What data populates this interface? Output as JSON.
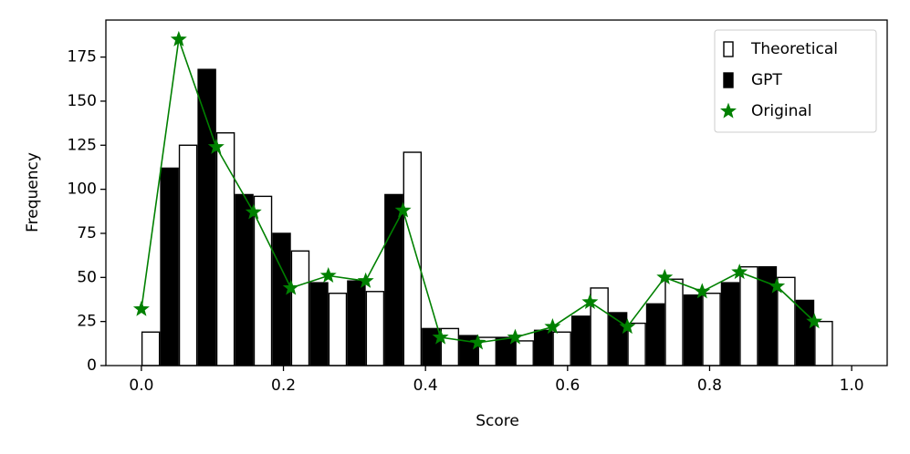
{
  "chart_data": {
    "type": "bar",
    "x_label": "Score",
    "y_label": "Frequency",
    "x": [
      0,
      0.0526,
      0.1053,
      0.1579,
      0.2105,
      0.2632,
      0.3158,
      0.3684,
      0.4211,
      0.4737,
      0.5263,
      0.5789,
      0.6316,
      0.6842,
      0.7368,
      0.7895,
      0.8421,
      0.8947,
      0.9474
    ],
    "series": [
      {
        "name": "Theoretical",
        "type": "bar",
        "color": "#ffffff",
        "edge_color": "#000000",
        "side": "right",
        "values": [
          19,
          125,
          132,
          96,
          65,
          41,
          42,
          121,
          21,
          16,
          14,
          19,
          44,
          24,
          49,
          41,
          56,
          50,
          25
        ]
      },
      {
        "name": "GPT",
        "type": "bar",
        "color": "#000000",
        "edge_color": "#000000",
        "side": "left",
        "values": [
          0,
          112,
          168,
          97,
          75,
          47,
          48,
          97,
          21,
          17,
          16,
          20,
          28,
          30,
          35,
          40,
          47,
          56,
          37
        ]
      },
      {
        "name": "Original",
        "type": "line",
        "marker": "star",
        "color": "#008000",
        "values": [
          32,
          185,
          124,
          87,
          44,
          51,
          48,
          88,
          16,
          13,
          16,
          22,
          36,
          22,
          50,
          42,
          53,
          45,
          25
        ]
      }
    ],
    "xlim": [
      -0.05,
      1.05
    ],
    "xticks": [
      {
        "value": 0,
        "label": "0.0"
      },
      0.2,
      0.4,
      0.6,
      0.8,
      {
        "value": 1,
        "label": "1.0"
      }
    ],
    "ylim": [
      0,
      196
    ],
    "yticks": [
      0,
      25,
      50,
      75,
      100,
      125,
      150,
      175
    ],
    "legend": "upper right",
    "grid": false
  }
}
